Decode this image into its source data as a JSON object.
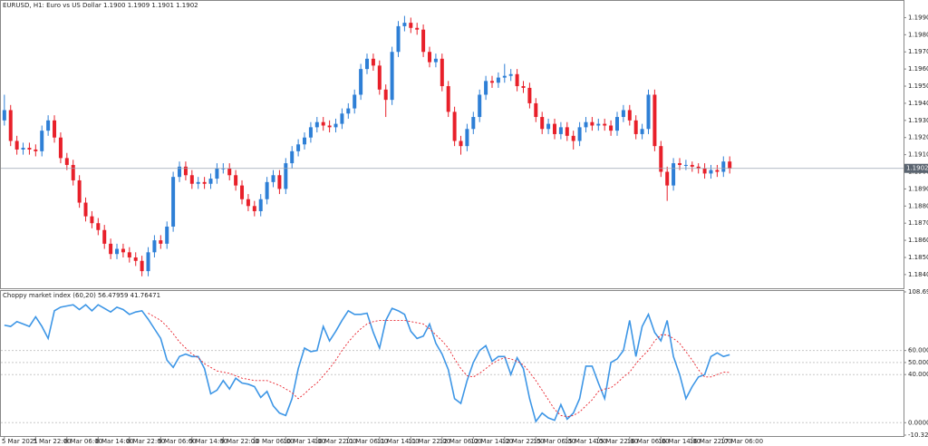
{
  "chart_data": [
    {
      "type": "candlestick",
      "title": "EURUSD, H1:  Euro vs US Dollar  1.1900 1.1909 1.1901 1.1902",
      "up_color": "#2e7fd6",
      "down_color": "#e8202a",
      "xlim": [
        -0.7,
        143.8
      ],
      "ylim": [
        1.1832,
        1.1995
      ],
      "yticks": [
        {
          "value": 1.199,
          "label": "1.1990"
        },
        {
          "value": 1.198,
          "label": "1.1980"
        },
        {
          "value": 1.197,
          "label": "1.1970"
        },
        {
          "value": 1.196,
          "label": "1.1960"
        },
        {
          "value": 1.195,
          "label": "1.1950"
        },
        {
          "value": 1.194,
          "label": "1.1940"
        },
        {
          "value": 1.193,
          "label": "1.1930"
        },
        {
          "value": 1.192,
          "label": "1.1920"
        },
        {
          "value": 1.191,
          "label": "1.1910"
        },
        {
          "value": 1.19,
          "label": "1.1900"
        },
        {
          "value": 1.189,
          "label": "1.1890"
        },
        {
          "value": 1.188,
          "label": "1.1880"
        },
        {
          "value": 1.187,
          "label": "1.1870"
        },
        {
          "value": 1.186,
          "label": "1.1860"
        },
        {
          "value": 1.185,
          "label": "1.1850"
        },
        {
          "value": 1.184,
          "label": "1.1840"
        }
      ],
      "current_price": 1.1902,
      "open": [
        1.193,
        1.1936,
        1.1918,
        1.1913,
        1.1914,
        1.1913,
        1.1912,
        1.1924,
        1.193,
        1.192,
        1.1908,
        1.1904,
        1.1895,
        1.1882,
        1.1874,
        1.187,
        1.1866,
        1.1858,
        1.1852,
        1.1855,
        1.1853,
        1.185,
        1.1848,
        1.1842,
        1.1853,
        1.186,
        1.1858,
        1.1868,
        1.1897,
        1.1903,
        1.1898,
        1.1893,
        1.1894,
        1.1893,
        1.1896,
        1.1902,
        1.1902,
        1.1898,
        1.1892,
        1.1884,
        1.188,
        1.1877,
        1.1884,
        1.1894,
        1.1898,
        1.189,
        1.1905,
        1.1912,
        1.1916,
        1.192,
        1.1926,
        1.1929,
        1.1927,
        1.1926,
        1.1928,
        1.1934,
        1.1937,
        1.1945,
        1.196,
        1.1966,
        1.1962,
        1.1948,
        1.1942,
        1.197,
        1.1985,
        1.1987,
        1.1984,
        1.1983,
        1.197,
        1.1964,
        1.1966,
        1.195,
        1.1935,
        1.1918,
        1.1915,
        1.1925,
        1.1932,
        1.1945,
        1.1953,
        1.1952,
        1.1955,
        1.1956,
        1.1957,
        1.195,
        1.1949,
        1.194,
        1.1932,
        1.1925,
        1.1928,
        1.1922,
        1.1926,
        1.1921,
        1.1918,
        1.1926,
        1.1929,
        1.1927,
        1.1928,
        1.1927,
        1.1924,
        1.1932,
        1.1936,
        1.193,
        1.1922,
        1.1925,
        1.1945,
        1.1915,
        1.19,
        1.1892,
        1.1905,
        1.1904,
        1.1904,
        1.1903,
        1.1902,
        1.1899,
        1.1901,
        1.19,
        1.1906
      ],
      "high": [
        1.1945,
        1.1939,
        1.1921,
        1.1917,
        1.1917,
        1.1916,
        1.1927,
        1.1933,
        1.1933,
        1.1923,
        1.1911,
        1.1907,
        1.1898,
        1.1885,
        1.1877,
        1.1873,
        1.1869,
        1.1861,
        1.1858,
        1.1858,
        1.1856,
        1.1853,
        1.1851,
        1.1856,
        1.1863,
        1.1863,
        1.1871,
        1.19,
        1.1906,
        1.1906,
        1.1901,
        1.1897,
        1.1897,
        1.1899,
        1.1905,
        1.1905,
        1.1905,
        1.1901,
        1.1895,
        1.1887,
        1.1883,
        1.1887,
        1.1897,
        1.1901,
        1.1901,
        1.1908,
        1.1915,
        1.1919,
        1.1923,
        1.1929,
        1.1932,
        1.1932,
        1.193,
        1.1931,
        1.1937,
        1.194,
        1.1948,
        1.1963,
        1.1969,
        1.1969,
        1.1965,
        1.1951,
        1.1973,
        1.1988,
        1.1991,
        1.199,
        1.1987,
        1.1986,
        1.1973,
        1.1969,
        1.1969,
        1.1953,
        1.1938,
        1.1921,
        1.1928,
        1.1935,
        1.1948,
        1.1956,
        1.1956,
        1.1958,
        1.1963,
        1.196,
        1.196,
        1.1953,
        1.1952,
        1.1943,
        1.1935,
        1.1931,
        1.1931,
        1.1929,
        1.1929,
        1.1924,
        1.1929,
        1.1932,
        1.1932,
        1.1931,
        1.1931,
        1.193,
        1.1935,
        1.1939,
        1.1939,
        1.1933,
        1.1928,
        1.1948,
        1.1948,
        1.1918,
        1.1903,
        1.1908,
        1.1908,
        1.1907,
        1.1906,
        1.1905,
        1.1905,
        1.1904,
        1.1904,
        1.1909,
        1.1909
      ],
      "low": [
        1.1927,
        1.1915,
        1.191,
        1.191,
        1.191,
        1.1909,
        1.1909,
        1.1921,
        1.1917,
        1.1905,
        1.1901,
        1.1892,
        1.1879,
        1.1871,
        1.1867,
        1.1863,
        1.1855,
        1.1849,
        1.1849,
        1.185,
        1.1847,
        1.1845,
        1.1839,
        1.1839,
        1.185,
        1.1855,
        1.1855,
        1.1865,
        1.1894,
        1.1895,
        1.189,
        1.189,
        1.189,
        1.189,
        1.1893,
        1.1899,
        1.1895,
        1.1889,
        1.1881,
        1.1877,
        1.1874,
        1.1874,
        1.1881,
        1.1891,
        1.1887,
        1.1887,
        1.1902,
        1.1909,
        1.1913,
        1.1917,
        1.1923,
        1.1924,
        1.1923,
        1.1923,
        1.1925,
        1.1931,
        1.1934,
        1.1942,
        1.1957,
        1.1959,
        1.1945,
        1.1932,
        1.1939,
        1.1967,
        1.1982,
        1.1981,
        1.198,
        1.1967,
        1.1961,
        1.1961,
        1.1947,
        1.1932,
        1.1915,
        1.191,
        1.1912,
        1.1922,
        1.1929,
        1.1942,
        1.1949,
        1.1949,
        1.1952,
        1.1953,
        1.1947,
        1.1946,
        1.1937,
        1.1929,
        1.1922,
        1.1922,
        1.1919,
        1.1919,
        1.1918,
        1.1913,
        1.1915,
        1.1923,
        1.1924,
        1.1924,
        1.1924,
        1.1921,
        1.1921,
        1.1929,
        1.1927,
        1.1919,
        1.1919,
        1.1922,
        1.1912,
        1.1897,
        1.1883,
        1.1889,
        1.1901,
        1.1901,
        1.19,
        1.1899,
        1.1896,
        1.1896,
        1.1897,
        1.1897,
        1.1899
      ],
      "close": [
        1.1936,
        1.1918,
        1.1913,
        1.1914,
        1.1913,
        1.1912,
        1.1924,
        1.193,
        1.192,
        1.1908,
        1.1904,
        1.1895,
        1.1882,
        1.1874,
        1.187,
        1.1866,
        1.1858,
        1.1852,
        1.1855,
        1.1853,
        1.185,
        1.1848,
        1.1842,
        1.1853,
        1.186,
        1.1858,
        1.1868,
        1.1897,
        1.1903,
        1.1898,
        1.1893,
        1.1894,
        1.1893,
        1.1896,
        1.1902,
        1.1902,
        1.1898,
        1.1892,
        1.1884,
        1.188,
        1.1877,
        1.1884,
        1.1894,
        1.1898,
        1.189,
        1.1905,
        1.1912,
        1.1916,
        1.192,
        1.1926,
        1.1929,
        1.1927,
        1.1926,
        1.1928,
        1.1934,
        1.1937,
        1.1945,
        1.196,
        1.1966,
        1.1962,
        1.1948,
        1.1942,
        1.197,
        1.1985,
        1.1987,
        1.1984,
        1.1983,
        1.197,
        1.1964,
        1.1966,
        1.195,
        1.1935,
        1.1918,
        1.1915,
        1.1925,
        1.1932,
        1.1945,
        1.1953,
        1.1952,
        1.1955,
        1.1956,
        1.1957,
        1.195,
        1.1949,
        1.194,
        1.1932,
        1.1925,
        1.1928,
        1.1922,
        1.1926,
        1.1921,
        1.1918,
        1.1926,
        1.1929,
        1.1927,
        1.1928,
        1.1927,
        1.1924,
        1.1932,
        1.1936,
        1.193,
        1.1922,
        1.1925,
        1.1945,
        1.1915,
        1.19,
        1.1892,
        1.1905,
        1.1904,
        1.1904,
        1.1903,
        1.1902,
        1.1899,
        1.1901,
        1.19,
        1.1906,
        1.1902
      ]
    },
    {
      "type": "line",
      "title": "Choppy market index (60,20) 56.47959 41.76471",
      "xlim": [
        -0.7,
        143.8
      ],
      "ylim": [
        -10.32,
        108.69037
      ],
      "yticks": [
        108.69037,
        {
          "value": 60,
          "label": "60.00000"
        },
        {
          "value": 50,
          "label": "50.00000"
        },
        {
          "value": 40,
          "label": "40.00000"
        },
        {
          "value": 0,
          "label": "0.00000"
        },
        {
          "value": -10.32,
          "label": "-10.32000"
        }
      ],
      "xticks": [
        {
          "value": 0,
          "label": "5 Mar 2021"
        },
        {
          "value": 5,
          "label": "5 Mar 22:00"
        },
        {
          "value": 10,
          "label": "8 Mar 06:00"
        },
        {
          "value": 15,
          "label": "8 Mar 14:00"
        },
        {
          "value": 20,
          "label": "8 Mar 22:00"
        },
        {
          "value": 25,
          "label": "9 Mar 06:00"
        },
        {
          "value": 30,
          "label": "9 Mar 14:00"
        },
        {
          "value": 35,
          "label": "9 Mar 22:00"
        },
        {
          "value": 40,
          "label": "10 Mar 06:00"
        },
        {
          "value": 45,
          "label": "10 Mar 14:00"
        },
        {
          "value": 50,
          "label": "10 Mar 22:00"
        },
        {
          "value": 55,
          "label": "11 Mar 06:00"
        },
        {
          "value": 60,
          "label": "11 Mar 14:00"
        },
        {
          "value": 65,
          "label": "11 Mar 22:00"
        },
        {
          "value": 70,
          "label": "12 Mar 06:00"
        },
        {
          "value": 75,
          "label": "12 Mar 14:00"
        },
        {
          "value": 80,
          "label": "12 Mar 22:00"
        },
        {
          "value": 85,
          "label": "15 Mar 06:00"
        },
        {
          "value": 90,
          "label": "15 Mar 14:00"
        },
        {
          "value": 95,
          "label": "15 Mar 22:00"
        },
        {
          "value": 100,
          "label": "16 Mar 06:00"
        },
        {
          "value": 105,
          "label": "16 Mar 14:00"
        },
        {
          "value": 110,
          "label": "16 Mar 22:00"
        },
        {
          "value": 115,
          "label": "17 Mar 06:00"
        }
      ],
      "series": [
        {
          "color": "#3d96e6",
          "dashed": false,
          "values": [
            81,
            80,
            84,
            82,
            80,
            88,
            80,
            70,
            93,
            96,
            97,
            98,
            94,
            98,
            93,
            98,
            95,
            92,
            96,
            94,
            90,
            92,
            93,
            86,
            78,
            70,
            52,
            46,
            55,
            57,
            55,
            55,
            45,
            24,
            27,
            35,
            28,
            37,
            33,
            32,
            30,
            21,
            26,
            14,
            8,
            6,
            20,
            45,
            62,
            59,
            60,
            80,
            68,
            76,
            85,
            93,
            90,
            90,
            91,
            75,
            62,
            85,
            95,
            93,
            90,
            76,
            70,
            72,
            82,
            66,
            57,
            44,
            20,
            16,
            35,
            50,
            60,
            64,
            51,
            55,
            55,
            40,
            54,
            45,
            20,
            1,
            8,
            4,
            2,
            15,
            3,
            8,
            20,
            47,
            47,
            33,
            20,
            50,
            53,
            60,
            85,
            55,
            80,
            90,
            75,
            68,
            85,
            55,
            40,
            20,
            30,
            38,
            40,
            55,
            58,
            55,
            56.47959
          ]
        },
        {
          "color": "#e8202a",
          "dashed": true,
          "values": [
            null,
            null,
            null,
            null,
            null,
            null,
            null,
            null,
            null,
            null,
            null,
            null,
            null,
            null,
            null,
            null,
            null,
            null,
            null,
            null,
            null,
            null,
            null,
            91,
            88,
            85,
            80,
            74,
            67,
            62,
            57,
            54,
            49,
            46,
            43,
            42,
            41,
            39,
            37,
            36,
            35,
            35,
            35,
            33,
            31,
            28,
            25,
            20,
            24,
            29,
            33,
            39,
            45,
            52,
            60,
            67,
            73,
            78,
            82,
            84,
            85,
            85,
            85,
            85,
            85,
            84,
            83,
            82,
            78,
            73,
            68,
            62,
            53,
            45,
            39,
            38,
            41,
            45,
            49,
            52,
            54,
            53,
            51,
            48,
            42,
            35,
            27,
            19,
            11,
            6,
            5,
            6,
            9,
            14,
            19,
            26,
            28,
            29,
            33,
            38,
            42,
            49,
            55,
            60,
            68,
            73,
            73,
            70,
            66,
            59,
            52,
            44,
            38,
            38,
            40,
            42,
            41.76471
          ]
        }
      ]
    }
  ]
}
